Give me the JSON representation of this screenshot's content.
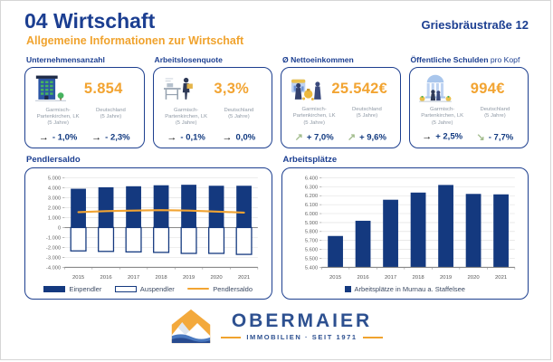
{
  "header": {
    "title": "04 Wirtschaft",
    "subtitle": "Allgemeine Informationen zur Wirtschaft",
    "address": "Griesbräustraße 12"
  },
  "trend_arrows": {
    "flat": "→",
    "up": "↗",
    "down": "↘"
  },
  "kpi_cards": [
    {
      "title": "Unternehmensanzahl",
      "title_suffix": "",
      "value": "5.854",
      "icon": "office-building-icon",
      "region": {
        "name": "Garmisch-Partenkirchen, LK",
        "period": "(5 Jahre)",
        "trend": "flat",
        "change": "- 1,0%"
      },
      "country": {
        "name": "Deutschland",
        "period": "(5 Jahre)",
        "trend": "flat",
        "change": "- 2,3%"
      }
    },
    {
      "title": "Arbeitslosenquote",
      "title_suffix": "",
      "value": "3,3%",
      "icon": "person-leaving-desk-icon",
      "region": {
        "name": "Garmisch-Partenkirchen, LK",
        "period": "(5 Jahre)",
        "trend": "flat",
        "change": "- 0,1%"
      },
      "country": {
        "name": "Deutschland",
        "period": "(5 Jahre)",
        "trend": "flat",
        "change": "0,0%"
      }
    },
    {
      "title": "Ø Nettoeinkommen",
      "title_suffix": "",
      "value": "25.542€",
      "icon": "income-icon",
      "region": {
        "name": "Garmisch-Partenkirchen, LK",
        "period": "(5 Jahre)",
        "trend": "up",
        "change": "+ 7,0%"
      },
      "country": {
        "name": "Deutschland",
        "period": "(5 Jahre)",
        "trend": "up",
        "change": "+ 9,6%"
      }
    },
    {
      "title": "Öffentliche Schulden",
      "title_suffix": " pro Kopf",
      "value": "994€",
      "icon": "bank-icon",
      "region": {
        "name": "Garmisch-Partenkirchen, LK",
        "period": "(5 Jahre)",
        "trend": "flat",
        "change": "+ 2,5%"
      },
      "country": {
        "name": "Deutschland",
        "period": "(5 Jahre)",
        "trend": "down",
        "change": "- 7,7%"
      }
    }
  ],
  "chart_data": [
    {
      "type": "bar",
      "subtype": "combo-bar-line",
      "title": "Pendlersaldo",
      "categories": [
        "2015",
        "2016",
        "2017",
        "2018",
        "2019",
        "2020",
        "2021"
      ],
      "series": [
        {
          "name": "Einpendler",
          "type": "bar",
          "style": "solid",
          "values": [
            3900,
            4050,
            4150,
            4250,
            4300,
            4200,
            4200
          ]
        },
        {
          "name": "Auspendler",
          "type": "bar",
          "style": "outline",
          "values": [
            -2350,
            -2400,
            -2450,
            -2500,
            -2600,
            -2600,
            -2700
          ]
        },
        {
          "name": "Pendlersaldo",
          "type": "line",
          "values": [
            1550,
            1650,
            1700,
            1750,
            1700,
            1600,
            1500
          ]
        }
      ],
      "ylim": [
        -4000,
        5000
      ],
      "baseline": 0,
      "ytick_values": [
        5000,
        4000,
        3000,
        2000,
        1000,
        0,
        -1000,
        -2000,
        -3000,
        -4000
      ],
      "ytick_labels": [
        "5.000",
        "4.000",
        "3.000",
        "2.000",
        "1.000",
        "0",
        "-1.000",
        "-2.000",
        "-3.000",
        "-4.000"
      ],
      "grid": true,
      "legend_position": "bottom"
    },
    {
      "type": "bar",
      "title": "Arbeitsplätze",
      "categories": [
        "2015",
        "2016",
        "2017",
        "2018",
        "2019",
        "2020",
        "2021"
      ],
      "series": [
        {
          "name": "Arbeitsplätze in Murnau a. Staffelsee",
          "type": "bar",
          "style": "solid",
          "values": [
            5750,
            5920,
            6155,
            6235,
            6320,
            6220,
            6215
          ]
        }
      ],
      "ylim": [
        5400,
        6400
      ],
      "baseline": 5400,
      "ytick_values": [
        6400,
        6300,
        6200,
        6100,
        6000,
        5900,
        5800,
        5700,
        5600,
        5500,
        5400
      ],
      "ytick_labels": [
        "6.400",
        "6.300",
        "6.200",
        "6.100",
        "6.000",
        "5.900",
        "5.800",
        "5.700",
        "5.600",
        "5.500",
        "5.400"
      ],
      "grid": true,
      "legend_position": "bottom"
    }
  ],
  "footer": {
    "brand": "OBERMAIER",
    "tagline": "IMMOBILIEN · SEIT 1971"
  },
  "colors": {
    "navy": "#14397f",
    "title_blue": "#1b3e91",
    "orange": "#f2a432",
    "green": "#a3bd8e",
    "gray_label": "#8f99a5",
    "grid": "#dcdcdc",
    "axis": "#7a7a7a"
  }
}
